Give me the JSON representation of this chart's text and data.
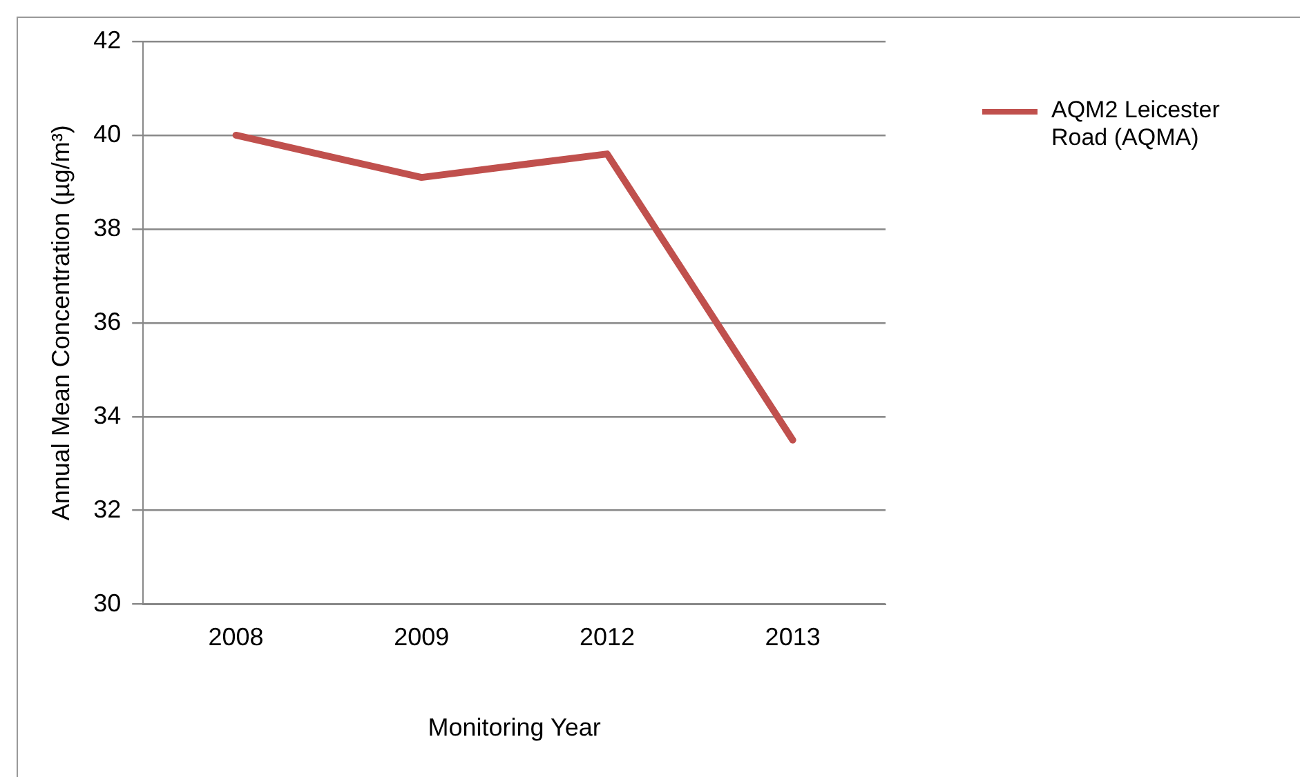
{
  "chart_data": {
    "type": "line",
    "xlabel": "Monitoring Year",
    "ylabel": "Annual Mean Concentration (µg/m³)",
    "categories": [
      "2008",
      "2009",
      "2012",
      "2013"
    ],
    "series": [
      {
        "name": "AQM2 Leicester Road (AQMA)",
        "color": "#c0504d",
        "values": [
          40,
          39.1,
          39.6,
          33.5
        ]
      }
    ],
    "ylim": [
      30,
      42
    ],
    "yticks": [
      30,
      32,
      34,
      36,
      38,
      40,
      42
    ],
    "grid": "y",
    "legend": "top right",
    "marker": "none",
    "line_style": "solid"
  }
}
